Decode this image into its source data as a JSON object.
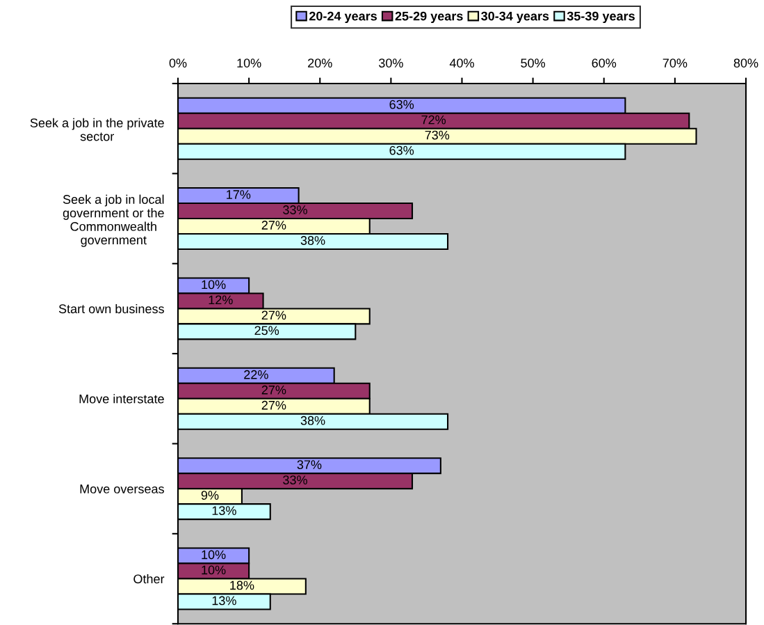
{
  "chart_data": {
    "type": "bar",
    "orientation": "horizontal",
    "categories": [
      "Seek a job in the private\nsector",
      "Seek a job in local\ngovernment or the\nCommonwealth\ngovernment",
      "Start own business",
      "Move interstate",
      "Move overseas",
      "Other"
    ],
    "series": [
      {
        "name": "20-24 years",
        "color": "#9999ff",
        "values": [
          63,
          17,
          10,
          22,
          37,
          10
        ],
        "value_labels": [
          "63%",
          "17%",
          "10%",
          "22%",
          "37%",
          "10%"
        ]
      },
      {
        "name": "25-29 years",
        "color": "#993366",
        "values": [
          72,
          33,
          12,
          27,
          33,
          10
        ],
        "value_labels": [
          "72%",
          "33%",
          "12%",
          "27%",
          "33%",
          "10%"
        ]
      },
      {
        "name": "30-34 years",
        "color": "#ffffcc",
        "values": [
          73,
          27,
          27,
          27,
          9,
          18
        ],
        "value_labels": [
          "73%",
          "27%",
          "27%",
          "27%",
          "9%",
          "18%"
        ]
      },
      {
        "name": "35-39 years",
        "color": "#ccffff",
        "values": [
          63,
          38,
          25,
          38,
          13,
          13
        ],
        "value_labels": [
          "63%",
          "38%",
          "25%",
          "38%",
          "13%",
          "13%"
        ]
      }
    ],
    "xlim": [
      0,
      80
    ],
    "xticks": [
      {
        "value": 0,
        "label": "0%"
      },
      {
        "value": 10,
        "label": "10%"
      },
      {
        "value": 20,
        "label": "20%"
      },
      {
        "value": 30,
        "label": "30%"
      },
      {
        "value": 40,
        "label": "40%"
      },
      {
        "value": 50,
        "label": "50%"
      },
      {
        "value": 60,
        "label": "60%"
      },
      {
        "value": 70,
        "label": "70%"
      },
      {
        "value": 80,
        "label": "80%"
      }
    ],
    "legend": "top",
    "grid": false
  }
}
